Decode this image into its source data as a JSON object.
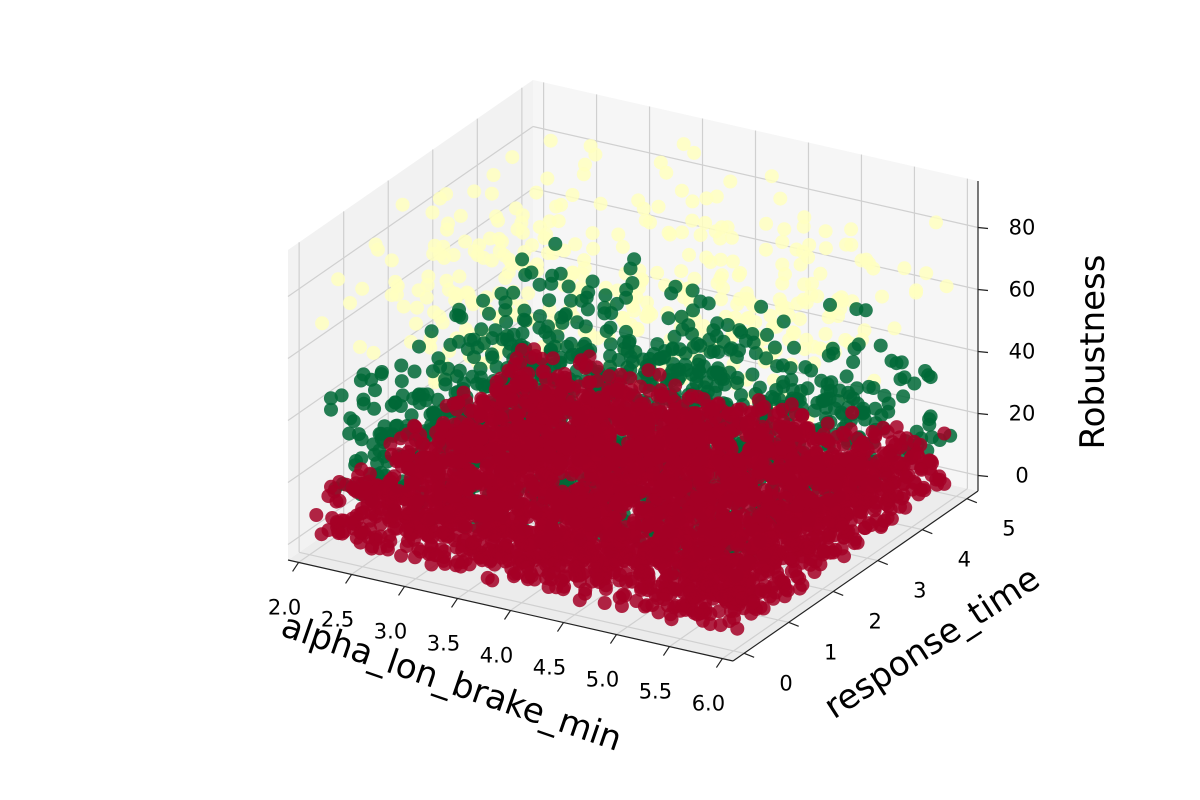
{
  "chart_data": {
    "type": "scatter",
    "projection": "3d",
    "title": "",
    "xlabel": "alpha_lon_brake_min",
    "ylabel": "response_time",
    "zlabel": "Robustness",
    "xlim": [
      1.9,
      6.1
    ],
    "ylim": [
      -0.25,
      5.25
    ],
    "zlim": [
      -5,
      95
    ],
    "xticks": [
      "2.0",
      "2.5",
      "3.0",
      "3.5",
      "4.0",
      "4.5",
      "5.0",
      "5.5",
      "6.0"
    ],
    "yticks": [
      "0",
      "1",
      "2",
      "3",
      "4",
      "5"
    ],
    "zticks": [
      "0",
      "20",
      "40",
      "60",
      "80"
    ],
    "grid": true,
    "colormap": "RdYlGn",
    "colors": {
      "low": "#a50026",
      "mid": "#006837",
      "high": "#ffffbf",
      "pane": "#f2f2f2",
      "grid": "#d0d0d0"
    },
    "series": [
      {
        "color": "#a50026",
        "description": "near-zero robustness (dense layer)",
        "x_range": [
          2.0,
          6.0
        ],
        "y_range": [
          0.0,
          5.0
        ],
        "z_range": [
          0,
          15
        ],
        "n_points": 3000
      },
      {
        "color": "#006837",
        "description": "mid robustness band",
        "x_range": [
          2.0,
          6.0
        ],
        "y_range": [
          0.0,
          5.0
        ],
        "z_range": [
          15,
          50
        ],
        "n_points": 1300
      },
      {
        "color": "#ffffbf",
        "description": "high robustness (sparse)",
        "x_range": [
          2.0,
          6.0
        ],
        "y_range": [
          0.0,
          5.0
        ],
        "z_range": [
          45,
          90
        ],
        "n_points": 420
      }
    ]
  }
}
